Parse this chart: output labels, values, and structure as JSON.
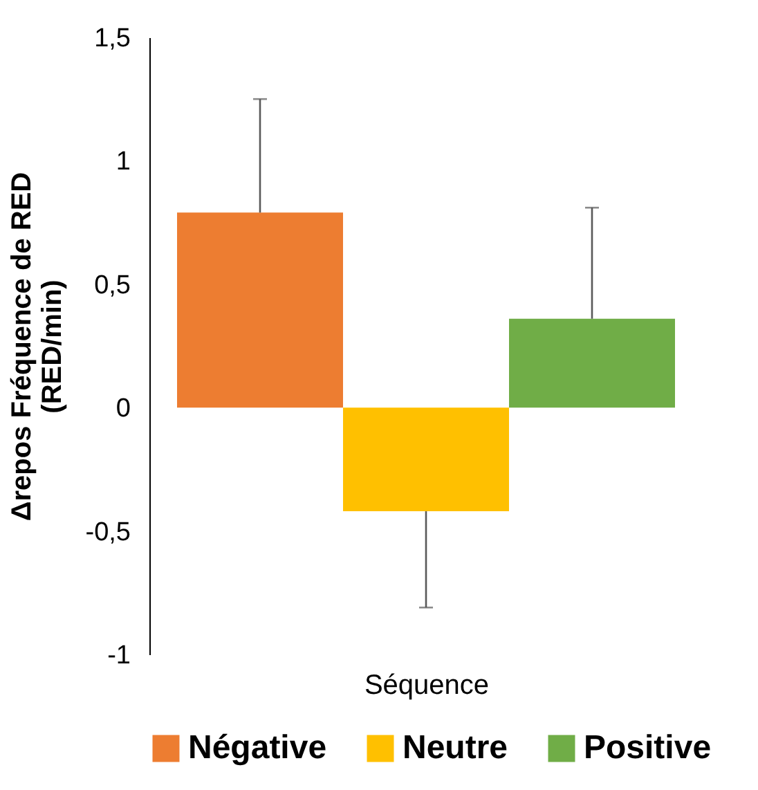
{
  "chart_data": {
    "type": "bar",
    "categories": [
      null
    ],
    "xlabel": "Séquence",
    "ylabel": "Δrepos Fréquence de RED\n(RED/min)",
    "series": [
      {
        "name": "Négative",
        "color": "#ed7d31",
        "values": [
          0.79
        ],
        "errors": [
          [
            0.79,
            1.25
          ]
        ]
      },
      {
        "name": "Neutre",
        "color": "#ffc000",
        "values": [
          -0.42
        ],
        "errors": [
          [
            -0.81,
            -0.42
          ]
        ]
      },
      {
        "name": "Positive",
        "color": "#70ad47",
        "values": [
          0.36
        ],
        "errors": [
          [
            0.36,
            0.81
          ]
        ]
      }
    ],
    "ylim": [
      -1,
      1.5
    ],
    "yticks": [
      {
        "value": -1,
        "label": "-1"
      },
      {
        "value": -0.5,
        "label": "-0,5"
      },
      {
        "value": 0,
        "label": "0"
      },
      {
        "value": 0.5,
        "label": "0,5"
      },
      {
        "value": 1,
        "label": "1"
      },
      {
        "value": 1.5,
        "label": "1,5"
      }
    ],
    "grid": false,
    "legend": "bottom"
  }
}
